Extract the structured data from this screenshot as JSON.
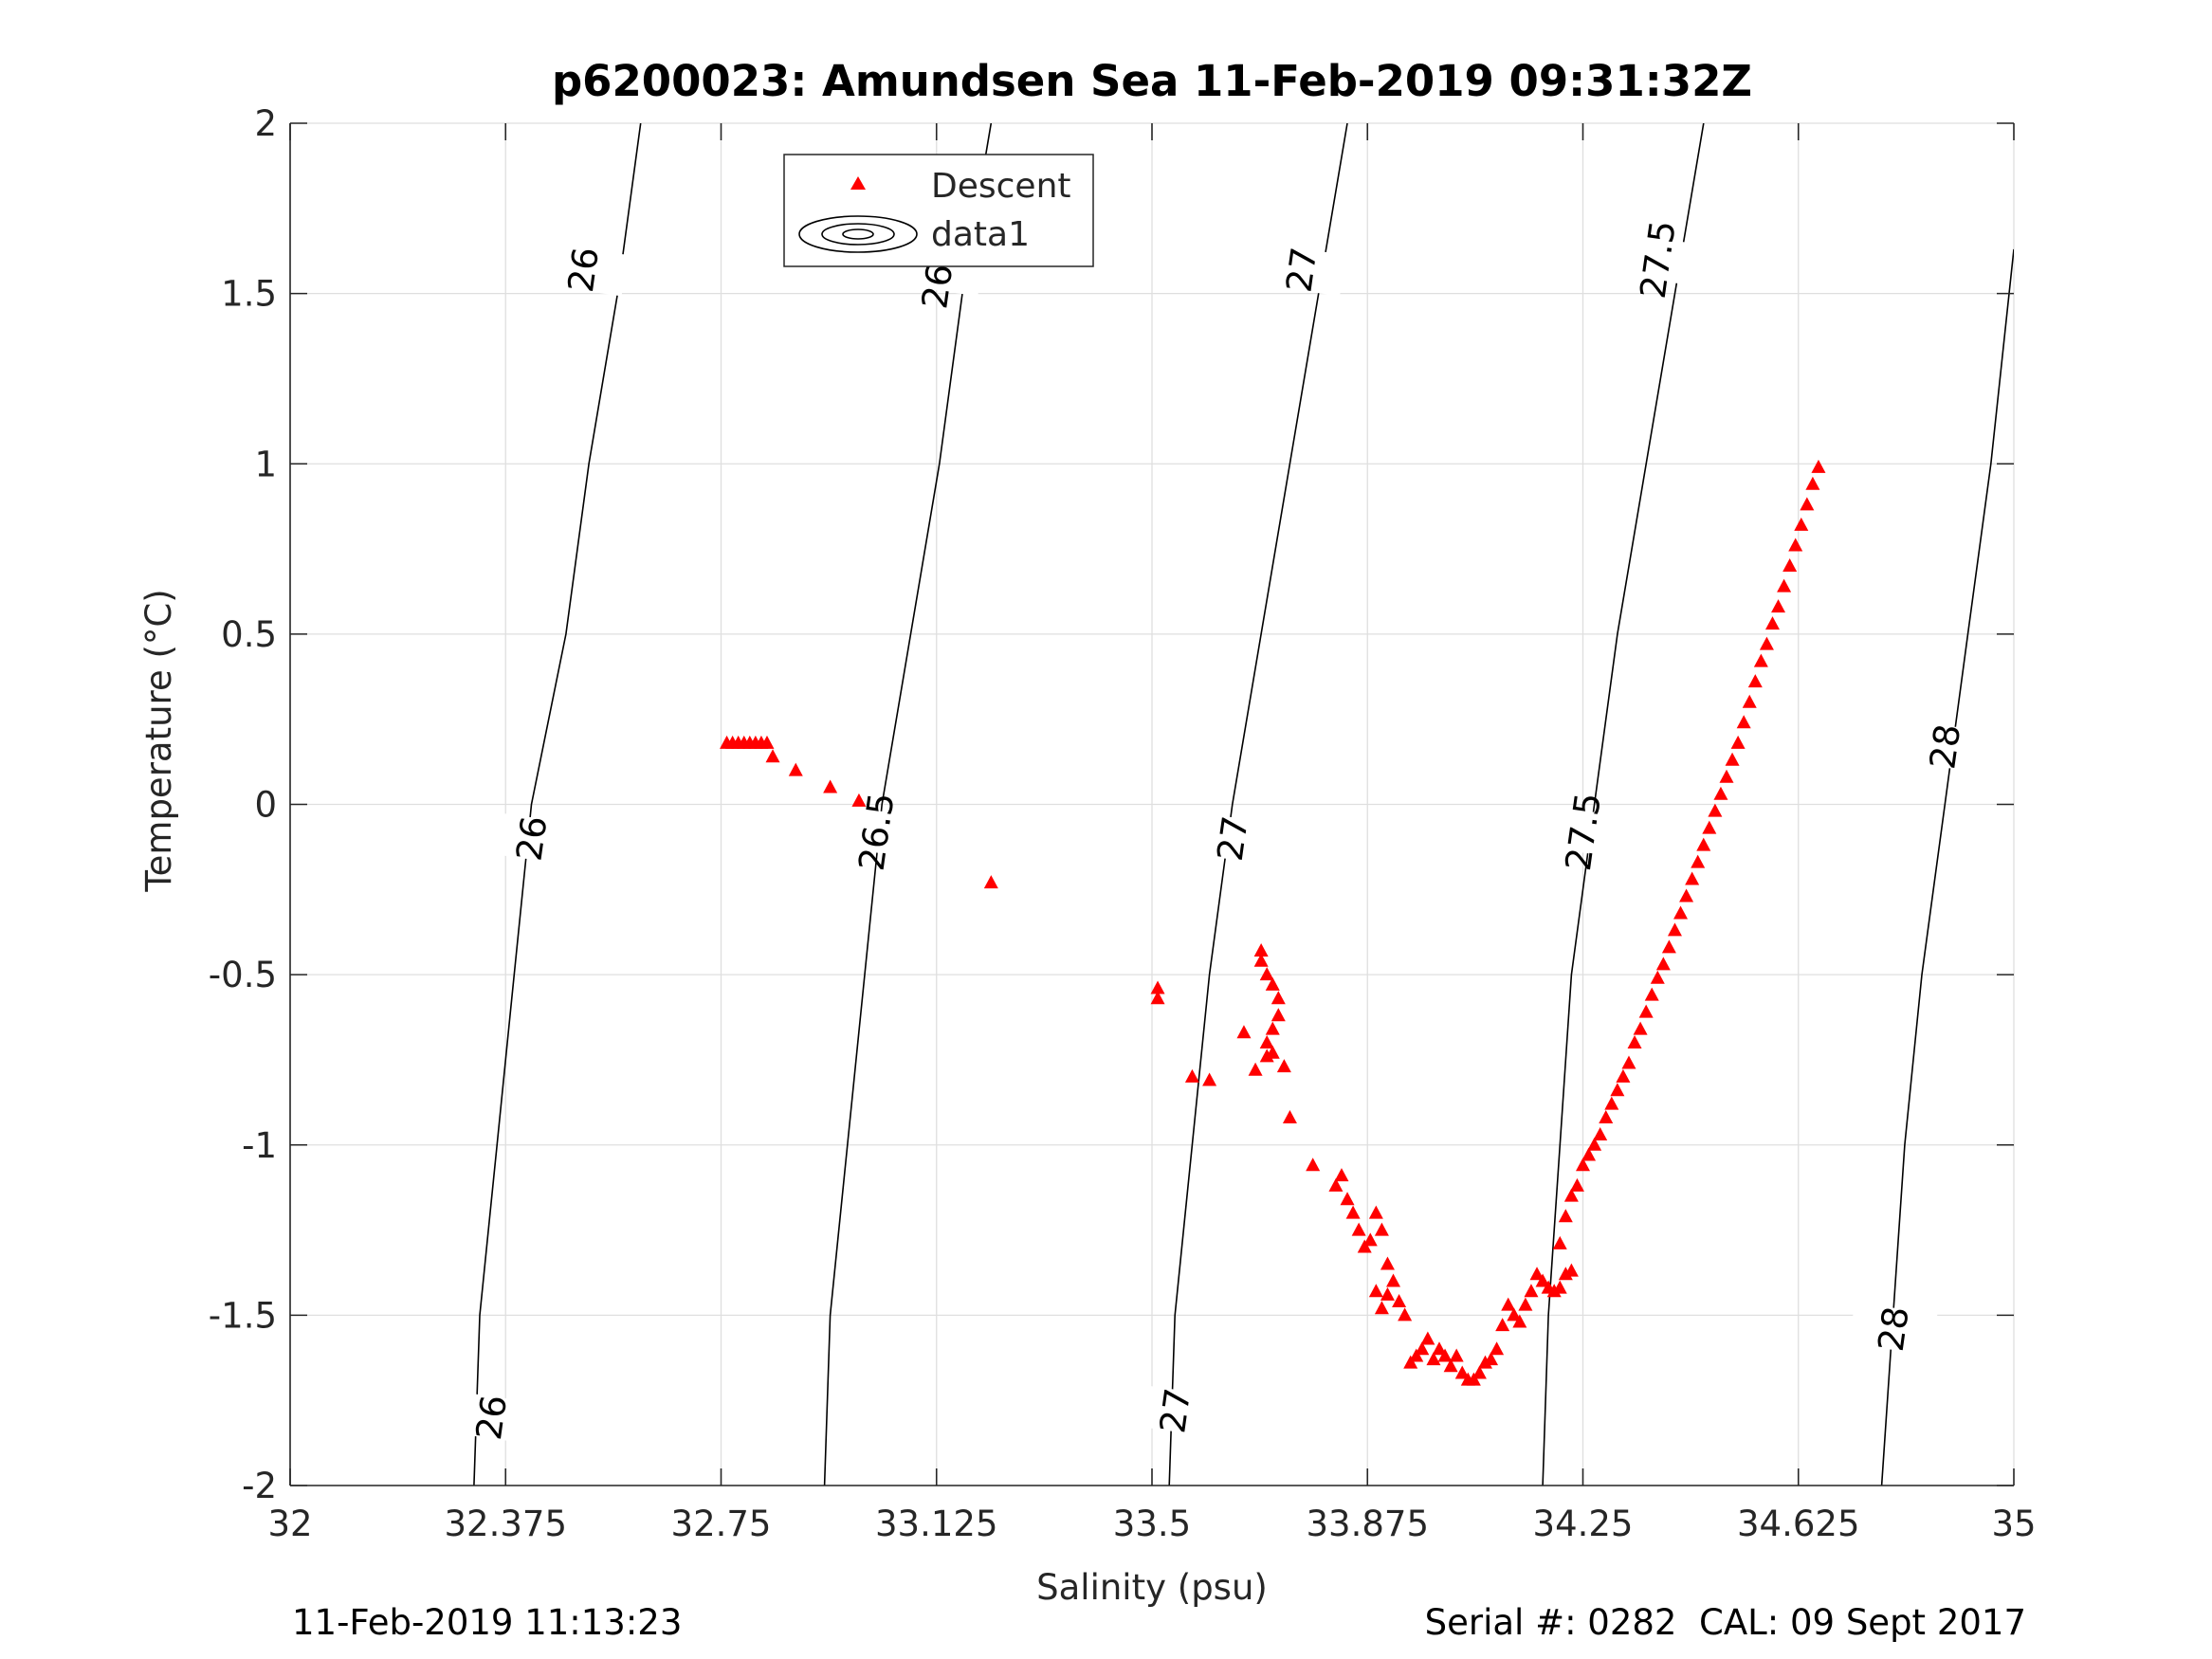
{
  "chart_data": {
    "type": "scatter",
    "title": "p6200023: Amundsen Sea 11-Feb-2019 09:31:32Z",
    "xlabel": "Salinity (psu)",
    "ylabel": "Temperature (°C)",
    "xlim": [
      32,
      35
    ],
    "ylim": [
      -2,
      2
    ],
    "xticks": [
      32,
      32.375,
      32.75,
      33.125,
      33.5,
      33.875,
      34.25,
      34.625,
      35
    ],
    "xtick_labels": [
      "32",
      "32.375",
      "32.75",
      "33.125",
      "33.5",
      "33.875",
      "34.25",
      "34.625",
      "35"
    ],
    "yticks": [
      -2,
      -1.5,
      -1,
      -0.5,
      0,
      0.5,
      1,
      1.5,
      2
    ],
    "ytick_labels": [
      "-2",
      "-1.5",
      "-1",
      "-0.5",
      "0",
      "0.5",
      "1",
      "1.5",
      "2"
    ],
    "grid": true,
    "legend_position": "top-center",
    "legend": [
      "Descent",
      "data1"
    ],
    "marker_color": "#ff0000",
    "contour_color": "#000000",
    "series": [
      {
        "name": "Descent",
        "marker": "triangle",
        "points": [
          [
            32.76,
            0.18
          ],
          [
            32.77,
            0.18
          ],
          [
            32.78,
            0.18
          ],
          [
            32.79,
            0.18
          ],
          [
            32.8,
            0.18
          ],
          [
            32.81,
            0.18
          ],
          [
            32.82,
            0.18
          ],
          [
            32.83,
            0.18
          ],
          [
            32.84,
            0.14
          ],
          [
            32.88,
            0.1
          ],
          [
            32.94,
            0.05
          ],
          [
            32.99,
            0.01
          ],
          [
            33.22,
            -0.23
          ],
          [
            33.51,
            -0.54
          ],
          [
            33.51,
            -0.57
          ],
          [
            33.57,
            -0.8
          ],
          [
            33.6,
            -0.81
          ],
          [
            33.66,
            -0.67
          ],
          [
            33.68,
            -0.78
          ],
          [
            33.69,
            -0.43
          ],
          [
            33.69,
            -0.46
          ],
          [
            33.7,
            -0.5
          ],
          [
            33.71,
            -0.53
          ],
          [
            33.72,
            -0.57
          ],
          [
            33.72,
            -0.62
          ],
          [
            33.71,
            -0.66
          ],
          [
            33.7,
            -0.7
          ],
          [
            33.71,
            -0.73
          ],
          [
            33.73,
            -0.77
          ],
          [
            33.7,
            -0.74
          ],
          [
            33.74,
            -0.92
          ],
          [
            33.78,
            -1.06
          ],
          [
            33.82,
            -1.12
          ],
          [
            33.83,
            -1.09
          ],
          [
            33.84,
            -1.16
          ],
          [
            33.85,
            -1.2
          ],
          [
            33.86,
            -1.25
          ],
          [
            33.87,
            -1.3
          ],
          [
            33.88,
            -1.28
          ],
          [
            33.89,
            -1.2
          ],
          [
            33.9,
            -1.25
          ],
          [
            33.91,
            -1.35
          ],
          [
            33.89,
            -1.43
          ],
          [
            33.9,
            -1.48
          ],
          [
            33.91,
            -1.44
          ],
          [
            33.92,
            -1.4
          ],
          [
            33.93,
            -1.46
          ],
          [
            33.94,
            -1.5
          ],
          [
            33.95,
            -1.64
          ],
          [
            33.96,
            -1.62
          ],
          [
            33.97,
            -1.6
          ],
          [
            33.98,
            -1.57
          ],
          [
            33.99,
            -1.63
          ],
          [
            34.0,
            -1.6
          ],
          [
            34.01,
            -1.62
          ],
          [
            34.02,
            -1.65
          ],
          [
            34.03,
            -1.62
          ],
          [
            34.04,
            -1.67
          ],
          [
            34.05,
            -1.69
          ],
          [
            34.06,
            -1.69
          ],
          [
            34.07,
            -1.67
          ],
          [
            34.08,
            -1.64
          ],
          [
            34.09,
            -1.63
          ],
          [
            34.1,
            -1.6
          ],
          [
            34.11,
            -1.53
          ],
          [
            34.12,
            -1.47
          ],
          [
            34.13,
            -1.5
          ],
          [
            34.14,
            -1.52
          ],
          [
            34.15,
            -1.47
          ],
          [
            34.16,
            -1.43
          ],
          [
            34.17,
            -1.38
          ],
          [
            34.18,
            -1.4
          ],
          [
            34.19,
            -1.42
          ],
          [
            34.2,
            -1.43
          ],
          [
            34.21,
            -1.42
          ],
          [
            34.22,
            -1.38
          ],
          [
            34.23,
            -1.37
          ],
          [
            34.21,
            -1.29
          ],
          [
            34.22,
            -1.21
          ],
          [
            34.23,
            -1.15
          ],
          [
            34.24,
            -1.12
          ],
          [
            34.25,
            -1.06
          ],
          [
            34.26,
            -1.03
          ],
          [
            34.27,
            -1.0
          ],
          [
            34.28,
            -0.97
          ],
          [
            34.29,
            -0.92
          ],
          [
            34.3,
            -0.88
          ],
          [
            34.31,
            -0.84
          ],
          [
            34.32,
            -0.8
          ],
          [
            34.33,
            -0.76
          ],
          [
            34.34,
            -0.7
          ],
          [
            34.35,
            -0.66
          ],
          [
            34.36,
            -0.61
          ],
          [
            34.37,
            -0.56
          ],
          [
            34.38,
            -0.51
          ],
          [
            34.39,
            -0.47
          ],
          [
            34.4,
            -0.42
          ],
          [
            34.41,
            -0.37
          ],
          [
            34.42,
            -0.32
          ],
          [
            34.43,
            -0.27
          ],
          [
            34.44,
            -0.22
          ],
          [
            34.45,
            -0.17
          ],
          [
            34.46,
            -0.12
          ],
          [
            34.47,
            -0.07
          ],
          [
            34.48,
            -0.02
          ],
          [
            34.49,
            0.03
          ],
          [
            34.5,
            0.08
          ],
          [
            34.51,
            0.13
          ],
          [
            34.52,
            0.18
          ],
          [
            34.53,
            0.24
          ],
          [
            34.54,
            0.3
          ],
          [
            34.55,
            0.36
          ],
          [
            34.56,
            0.42
          ],
          [
            34.57,
            0.47
          ],
          [
            34.58,
            0.53
          ],
          [
            34.59,
            0.58
          ],
          [
            34.6,
            0.64
          ],
          [
            34.61,
            0.7
          ],
          [
            34.62,
            0.76
          ],
          [
            34.63,
            0.82
          ],
          [
            34.64,
            0.88
          ],
          [
            34.65,
            0.94
          ],
          [
            34.66,
            0.99
          ]
        ]
      },
      {
        "name": "data1",
        "type": "contour",
        "levels": [
          {
            "level": "26",
            "points": [
              [
                32.32,
                -2.0
              ],
              [
                32.33,
                -1.5
              ],
              [
                32.36,
                -1.0
              ],
              [
                32.39,
                -0.5
              ],
              [
                32.42,
                0.0
              ],
              [
                32.48,
                0.5
              ],
              [
                32.52,
                1.0
              ],
              [
                32.57,
                1.5
              ],
              [
                32.61,
                2.0
              ]
            ],
            "labels": [
              [
                32.35,
                -1.8
              ],
              [
                32.42,
                -0.1
              ],
              [
                32.51,
                1.57
              ]
            ]
          },
          {
            "level": "26.5",
            "points": [
              [
                32.93,
                -2.0
              ],
              [
                32.94,
                -1.5
              ],
              [
                32.97,
                -1.0
              ],
              [
                33.0,
                -0.5
              ],
              [
                33.03,
                0.0
              ],
              [
                33.08,
                0.5
              ],
              [
                33.13,
                1.0
              ],
              [
                33.17,
                1.5
              ],
              [
                33.22,
                2.0
              ]
            ],
            "labels": [
              [
                33.02,
                -0.08
              ],
              [
                33.13,
                1.57
              ]
            ]
          },
          {
            "level": "27",
            "points": [
              [
                33.53,
                -2.0
              ],
              [
                33.54,
                -1.5
              ],
              [
                33.57,
                -1.0
              ],
              [
                33.6,
                -0.5
              ],
              [
                33.64,
                0.0
              ],
              [
                33.69,
                0.5
              ],
              [
                33.74,
                1.0
              ],
              [
                33.79,
                1.5
              ],
              [
                33.84,
                2.0
              ]
            ],
            "labels": [
              [
                33.54,
                -1.78
              ],
              [
                33.64,
                -0.1
              ],
              [
                33.76,
                1.57
              ]
            ]
          },
          {
            "level": "27.5",
            "points": [
              [
                34.18,
                -2.0
              ],
              [
                34.19,
                -1.5
              ],
              [
                34.21,
                -1.0
              ],
              [
                34.23,
                -0.5
              ],
              [
                34.27,
                0.0
              ],
              [
                34.31,
                0.5
              ],
              [
                34.36,
                1.0
              ],
              [
                34.41,
                1.5
              ],
              [
                34.46,
                2.0
              ]
            ],
            "labels": [
              [
                34.25,
                -0.08
              ],
              [
                34.38,
                1.6
              ]
            ]
          },
          {
            "level": "28",
            "points": [
              [
                34.77,
                -2.0
              ],
              [
                34.79,
                -1.5
              ],
              [
                34.81,
                -1.0
              ],
              [
                34.84,
                -0.5
              ],
              [
                34.88,
                0.0
              ],
              [
                34.92,
                0.5
              ],
              [
                34.96,
                1.0
              ],
              [
                35.0,
                1.63
              ]
            ],
            "labels": [
              [
                34.79,
                -1.54
              ],
              [
                34.88,
                0.17
              ]
            ]
          }
        ]
      }
    ]
  },
  "footer": {
    "timestamp": "11-Feb-2019 11:13:23",
    "serial": "Serial #: 0282  CAL: 09 Sept 2017"
  }
}
